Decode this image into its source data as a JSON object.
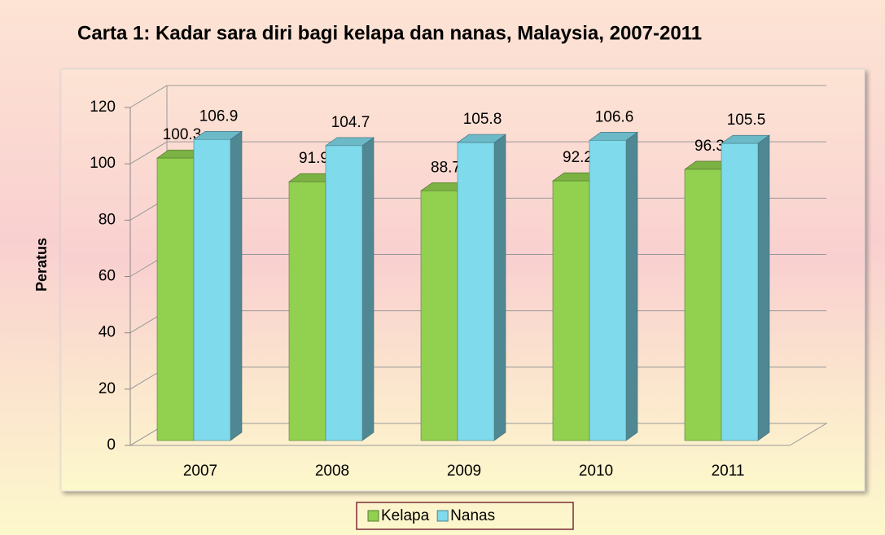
{
  "chart_data": {
    "type": "bar3d",
    "title": "Carta 1: Kadar sara diri bagi kelapa dan nanas, Malaysia, 2007-2011",
    "y_label": "Peratus",
    "categories": [
      "2007",
      "2008",
      "2009",
      "2010",
      "2011"
    ],
    "series": [
      {
        "name": "Kelapa",
        "color": "#92d050",
        "values": [
          100.3,
          91.9,
          88.7,
          92.2,
          96.3
        ]
      },
      {
        "name": "Nanas",
        "color": "#7fdaeb",
        "values": [
          106.9,
          104.7,
          105.8,
          106.6,
          105.5
        ]
      }
    ],
    "ylim": [
      0,
      120
    ],
    "yticks": [
      0,
      20,
      40,
      60,
      80,
      100,
      120
    ],
    "grid": true,
    "legend": "bottom"
  }
}
